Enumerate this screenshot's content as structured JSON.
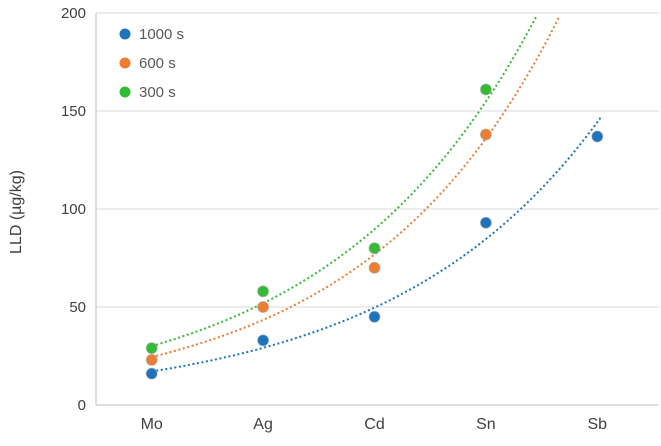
{
  "chart_data": {
    "type": "scatter",
    "title": "",
    "categories": [
      "Mo",
      "Ag",
      "Cd",
      "Sn",
      "Sb"
    ],
    "series": [
      {
        "name": "1000 s",
        "color": "#1B74BC",
        "values": [
          16,
          33,
          45,
          93,
          137
        ],
        "trendline": "exponential"
      },
      {
        "name": "600 s",
        "color": "#ED7D31",
        "values": [
          23,
          50,
          70,
          138,
          null
        ],
        "trendline": "exponential"
      },
      {
        "name": "300 s",
        "color": "#33BB33",
        "values": [
          29,
          58,
          80,
          161,
          null
        ],
        "trendline": "exponential"
      }
    ],
    "xlabel": "",
    "ylabel": "LLD (µg/kg)",
    "ylim": [
      0,
      200
    ],
    "yticks": [
      0,
      50,
      100,
      150,
      200
    ],
    "grid": true,
    "legend_position": "top-left",
    "trendline_style": "dotted",
    "marker": "circle"
  },
  "colors": {
    "background": "#FFFFFF",
    "gridline": "#D9D9D9",
    "axis_line": "#BFBFBF",
    "tick_label": "#3F3F3F",
    "legend_text": "#595959",
    "marker_halo": "#A6A6A6"
  }
}
